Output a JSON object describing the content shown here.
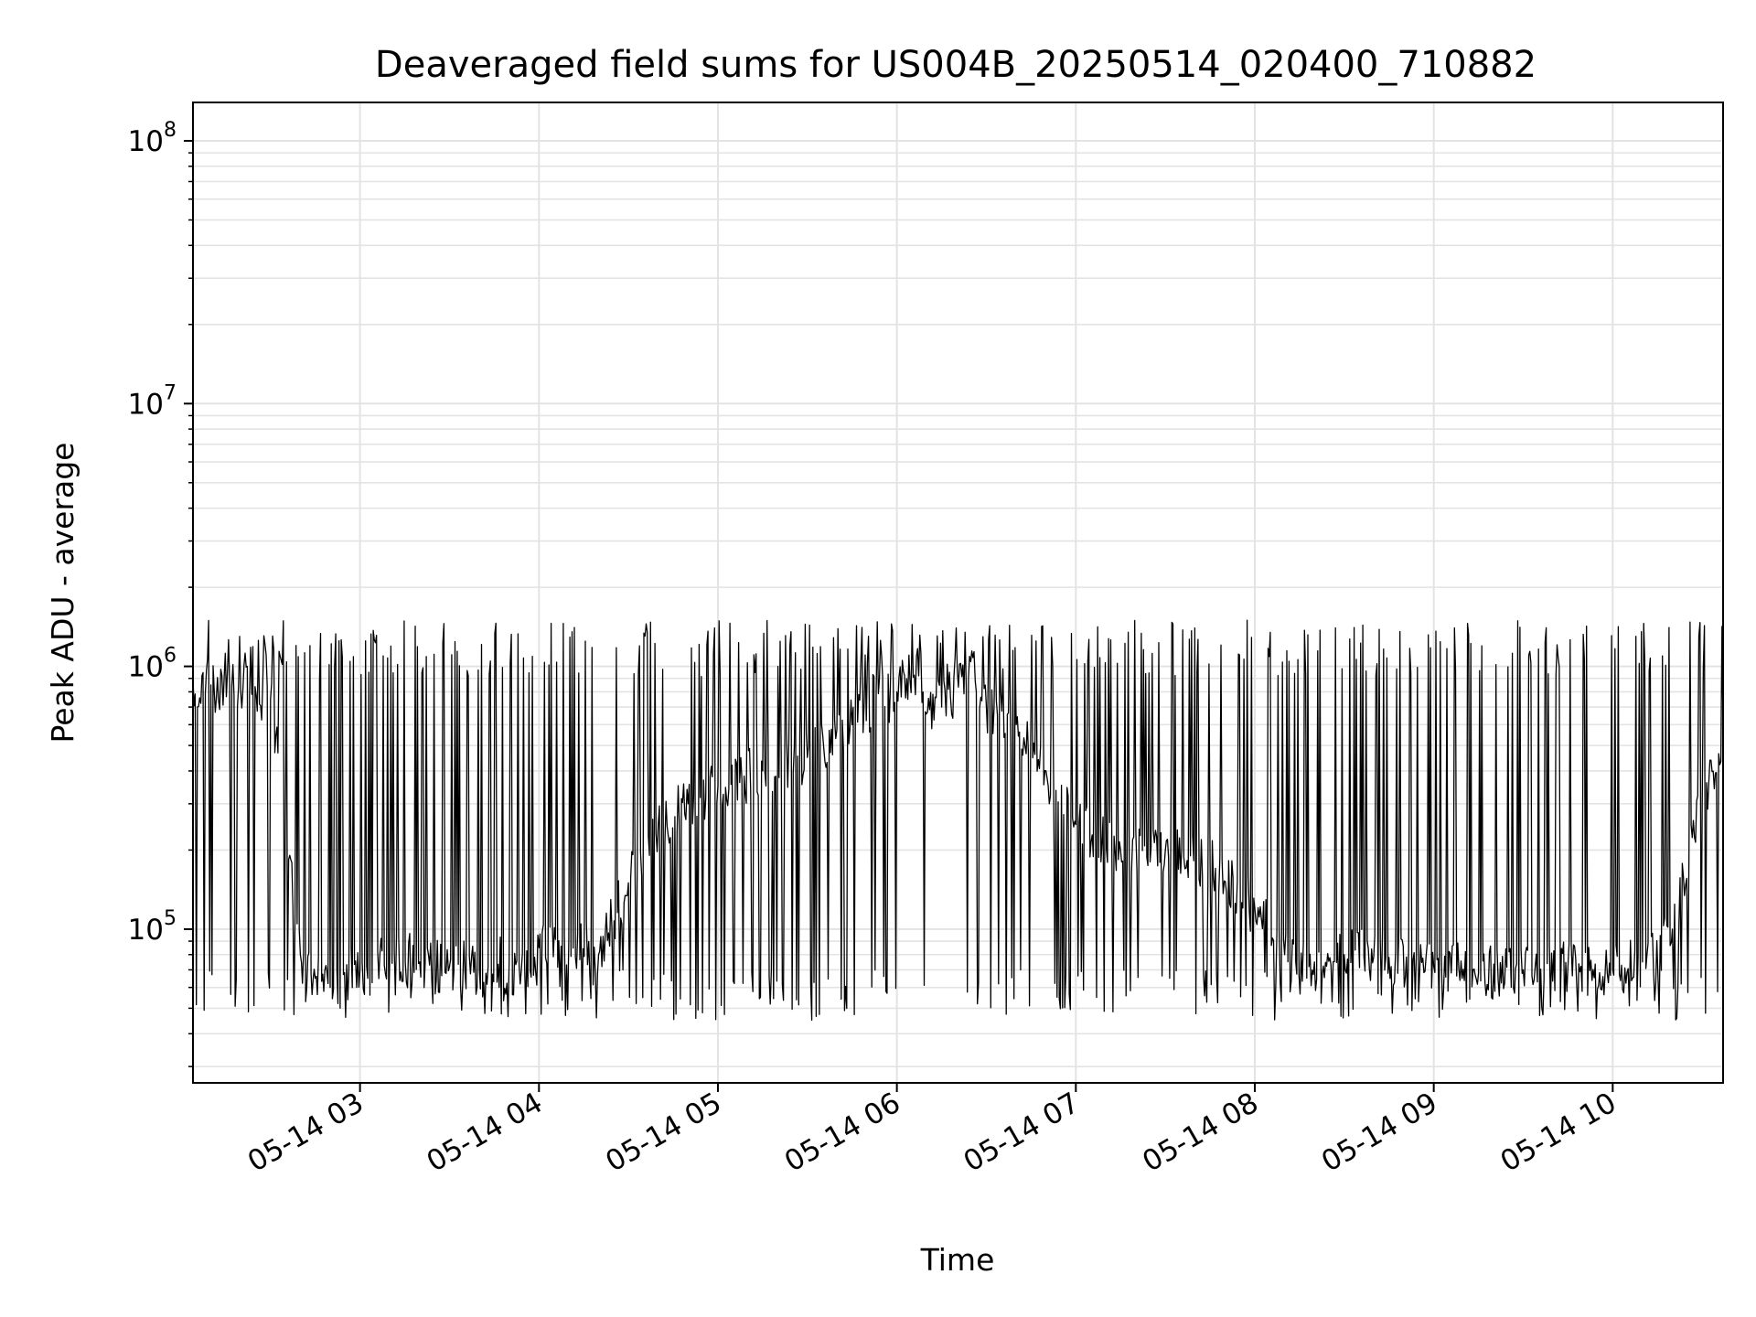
{
  "chart_data": {
    "type": "line",
    "title": "Deaveraged field sums for US004B_20250514_020400_710882",
    "xlabel": "Time",
    "ylabel": "Peak ADU - average",
    "yscale": "log",
    "xlim": [
      "2025-05-14 02:04",
      "2025-05-14 10:37"
    ],
    "ylim": [
      26000,
      140000000
    ],
    "grid": true,
    "line_color": "#000000",
    "x_ticks": [
      {
        "value": "2025-05-14 03:00",
        "label": "05-14 03"
      },
      {
        "value": "2025-05-14 04:00",
        "label": "05-14 04"
      },
      {
        "value": "2025-05-14 05:00",
        "label": "05-14 05"
      },
      {
        "value": "2025-05-14 06:00",
        "label": "05-14 06"
      },
      {
        "value": "2025-05-14 07:00",
        "label": "05-14 07"
      },
      {
        "value": "2025-05-14 08:00",
        "label": "05-14 08"
      },
      {
        "value": "2025-05-14 09:00",
        "label": "05-14 09"
      },
      {
        "value": "2025-05-14 10:00",
        "label": "05-14 10"
      }
    ],
    "y_ticks": [
      {
        "value": 100000,
        "base": "10",
        "exp": "5"
      },
      {
        "value": 1000000,
        "base": "10",
        "exp": "6"
      },
      {
        "value": 10000000,
        "base": "10",
        "exp": "7"
      },
      {
        "value": 100000000,
        "base": "10",
        "exp": "8"
      }
    ],
    "series": [
      {
        "x": [
          "2025-05-14 02:04",
          "2025-05-14 02:10",
          "2025-05-14 02:20",
          "2025-05-14 02:30",
          "2025-05-14 02:35",
          "2025-05-14 02:40",
          "2025-05-14 02:45",
          "2025-05-14 02:50",
          "2025-05-14 03:00",
          "2025-05-14 03:10",
          "2025-05-14 03:20",
          "2025-05-14 03:30",
          "2025-05-14 03:40",
          "2025-05-14 03:50",
          "2025-05-14 04:00",
          "2025-05-14 04:10",
          "2025-05-14 04:20",
          "2025-05-14 04:30",
          "2025-05-14 04:40",
          "2025-05-14 04:50",
          "2025-05-14 05:00",
          "2025-05-14 05:15",
          "2025-05-14 05:30",
          "2025-05-14 05:45",
          "2025-05-14 06:00",
          "2025-05-14 06:15",
          "2025-05-14 06:24",
          "2025-05-14 06:30",
          "2025-05-14 06:40",
          "2025-05-14 06:50",
          "2025-05-14 07:00",
          "2025-05-14 07:15",
          "2025-05-14 07:30",
          "2025-05-14 07:45",
          "2025-05-14 08:00",
          "2025-05-14 08:10",
          "2025-05-14 08:20",
          "2025-05-14 08:30",
          "2025-05-14 08:45",
          "2025-05-14 09:00",
          "2025-05-14 09:15",
          "2025-05-14 09:30",
          "2025-05-14 09:45",
          "2025-05-14 10:00",
          "2025-05-14 10:10",
          "2025-05-14 10:20",
          "2025-05-14 10:30",
          "2025-05-14 10:37"
        ],
        "y": [
          900000,
          850000,
          800000,
          750000,
          300000,
          80000,
          65000,
          60000,
          70000,
          80000,
          75000,
          72000,
          70000,
          75000,
          85000,
          90000,
          80000,
          150000,
          250000,
          300000,
          350000,
          400000,
          450000,
          600000,
          800000,
          700000,
          900000,
          700000,
          600000,
          400000,
          250000,
          200000,
          200000,
          180000,
          120000,
          80000,
          75000,
          80000,
          78000,
          72000,
          68000,
          70000,
          72000,
          70000,
          75000,
          100000,
          300000,
          550000
        ]
      }
    ]
  }
}
